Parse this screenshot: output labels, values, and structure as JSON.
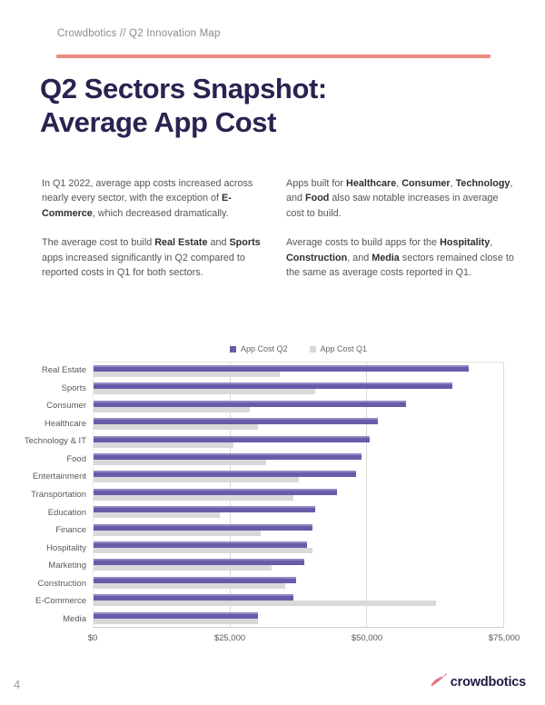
{
  "header": {
    "breadcrumb": "Crowdbotics // Q2 Innovation Map"
  },
  "title": {
    "line1": "Q2 Sectors Snapshot:",
    "line2": "Average App Cost"
  },
  "body": {
    "left": [
      [
        {
          "t": "In Q1 2022, average app costs increased across nearly every sector, with the exception of "
        },
        {
          "t": "E-Commerce",
          "b": true
        },
        {
          "t": ", which decreased dramatically."
        }
      ],
      [
        {
          "t": "The average cost to build "
        },
        {
          "t": "Real Estate",
          "b": true
        },
        {
          "t": " and "
        },
        {
          "t": "Sports",
          "b": true
        },
        {
          "t": " apps increased significantly in Q2 compared to reported costs in Q1 for both sectors."
        }
      ]
    ],
    "right": [
      [
        {
          "t": "Apps built for "
        },
        {
          "t": "Healthcare",
          "b": true
        },
        {
          "t": ", "
        },
        {
          "t": "Consumer",
          "b": true
        },
        {
          "t": ", "
        },
        {
          "t": "Technology",
          "b": true
        },
        {
          "t": ", and "
        },
        {
          "t": "Food",
          "b": true
        },
        {
          "t": " also saw notable increases in average cost to build."
        }
      ],
      [
        {
          "t": "Average costs to build apps for the "
        },
        {
          "t": "Hospitality",
          "b": true
        },
        {
          "t": ", "
        },
        {
          "t": "Construction",
          "b": true
        },
        {
          "t": ", and "
        },
        {
          "t": "Media",
          "b": true
        },
        {
          "t": " sectors remained close to the same as average costs reported in Q1."
        }
      ]
    ]
  },
  "chart_data": {
    "type": "bar",
    "orientation": "horizontal",
    "title": "",
    "xlabel": "",
    "ylabel": "",
    "xlim": [
      0,
      75000
    ],
    "grid": true,
    "legend_position": "top",
    "categories": [
      "Real Estate",
      "Sports",
      "Consumer",
      "Healthcare",
      "Technology & IT",
      "Food",
      "Entertainment",
      "Transportation",
      "Education",
      "Finance",
      "Hospitality",
      "Marketing",
      "Construction",
      "E-Commerce",
      "Media"
    ],
    "series": [
      {
        "name": "App Cost Q2",
        "color": "#675CA9",
        "values": [
          68500,
          65500,
          57000,
          52000,
          50500,
          49000,
          48000,
          44500,
          40500,
          40000,
          39000,
          38500,
          37000,
          36500,
          30000
        ]
      },
      {
        "name": "App Cost Q1",
        "color": "#D9D9D9",
        "values": [
          34000,
          40500,
          28500,
          30000,
          25500,
          31500,
          37500,
          36500,
          23000,
          30500,
          40000,
          32500,
          35000,
          62500,
          30000
        ]
      }
    ],
    "xticks": [
      {
        "label": "$0",
        "value": 0
      },
      {
        "label": "$25,000",
        "value": 25000
      },
      {
        "label": "$50,000",
        "value": 50000
      },
      {
        "label": "$75,000",
        "value": 75000
      }
    ]
  },
  "footer": {
    "page_number": "4",
    "logo_text": "crowdbotics"
  },
  "colors": {
    "accent_coral": "#E98B7F",
    "navy": "#2A2250",
    "bar_q2": "#675CA9",
    "bar_q1": "#D9D9D9"
  }
}
